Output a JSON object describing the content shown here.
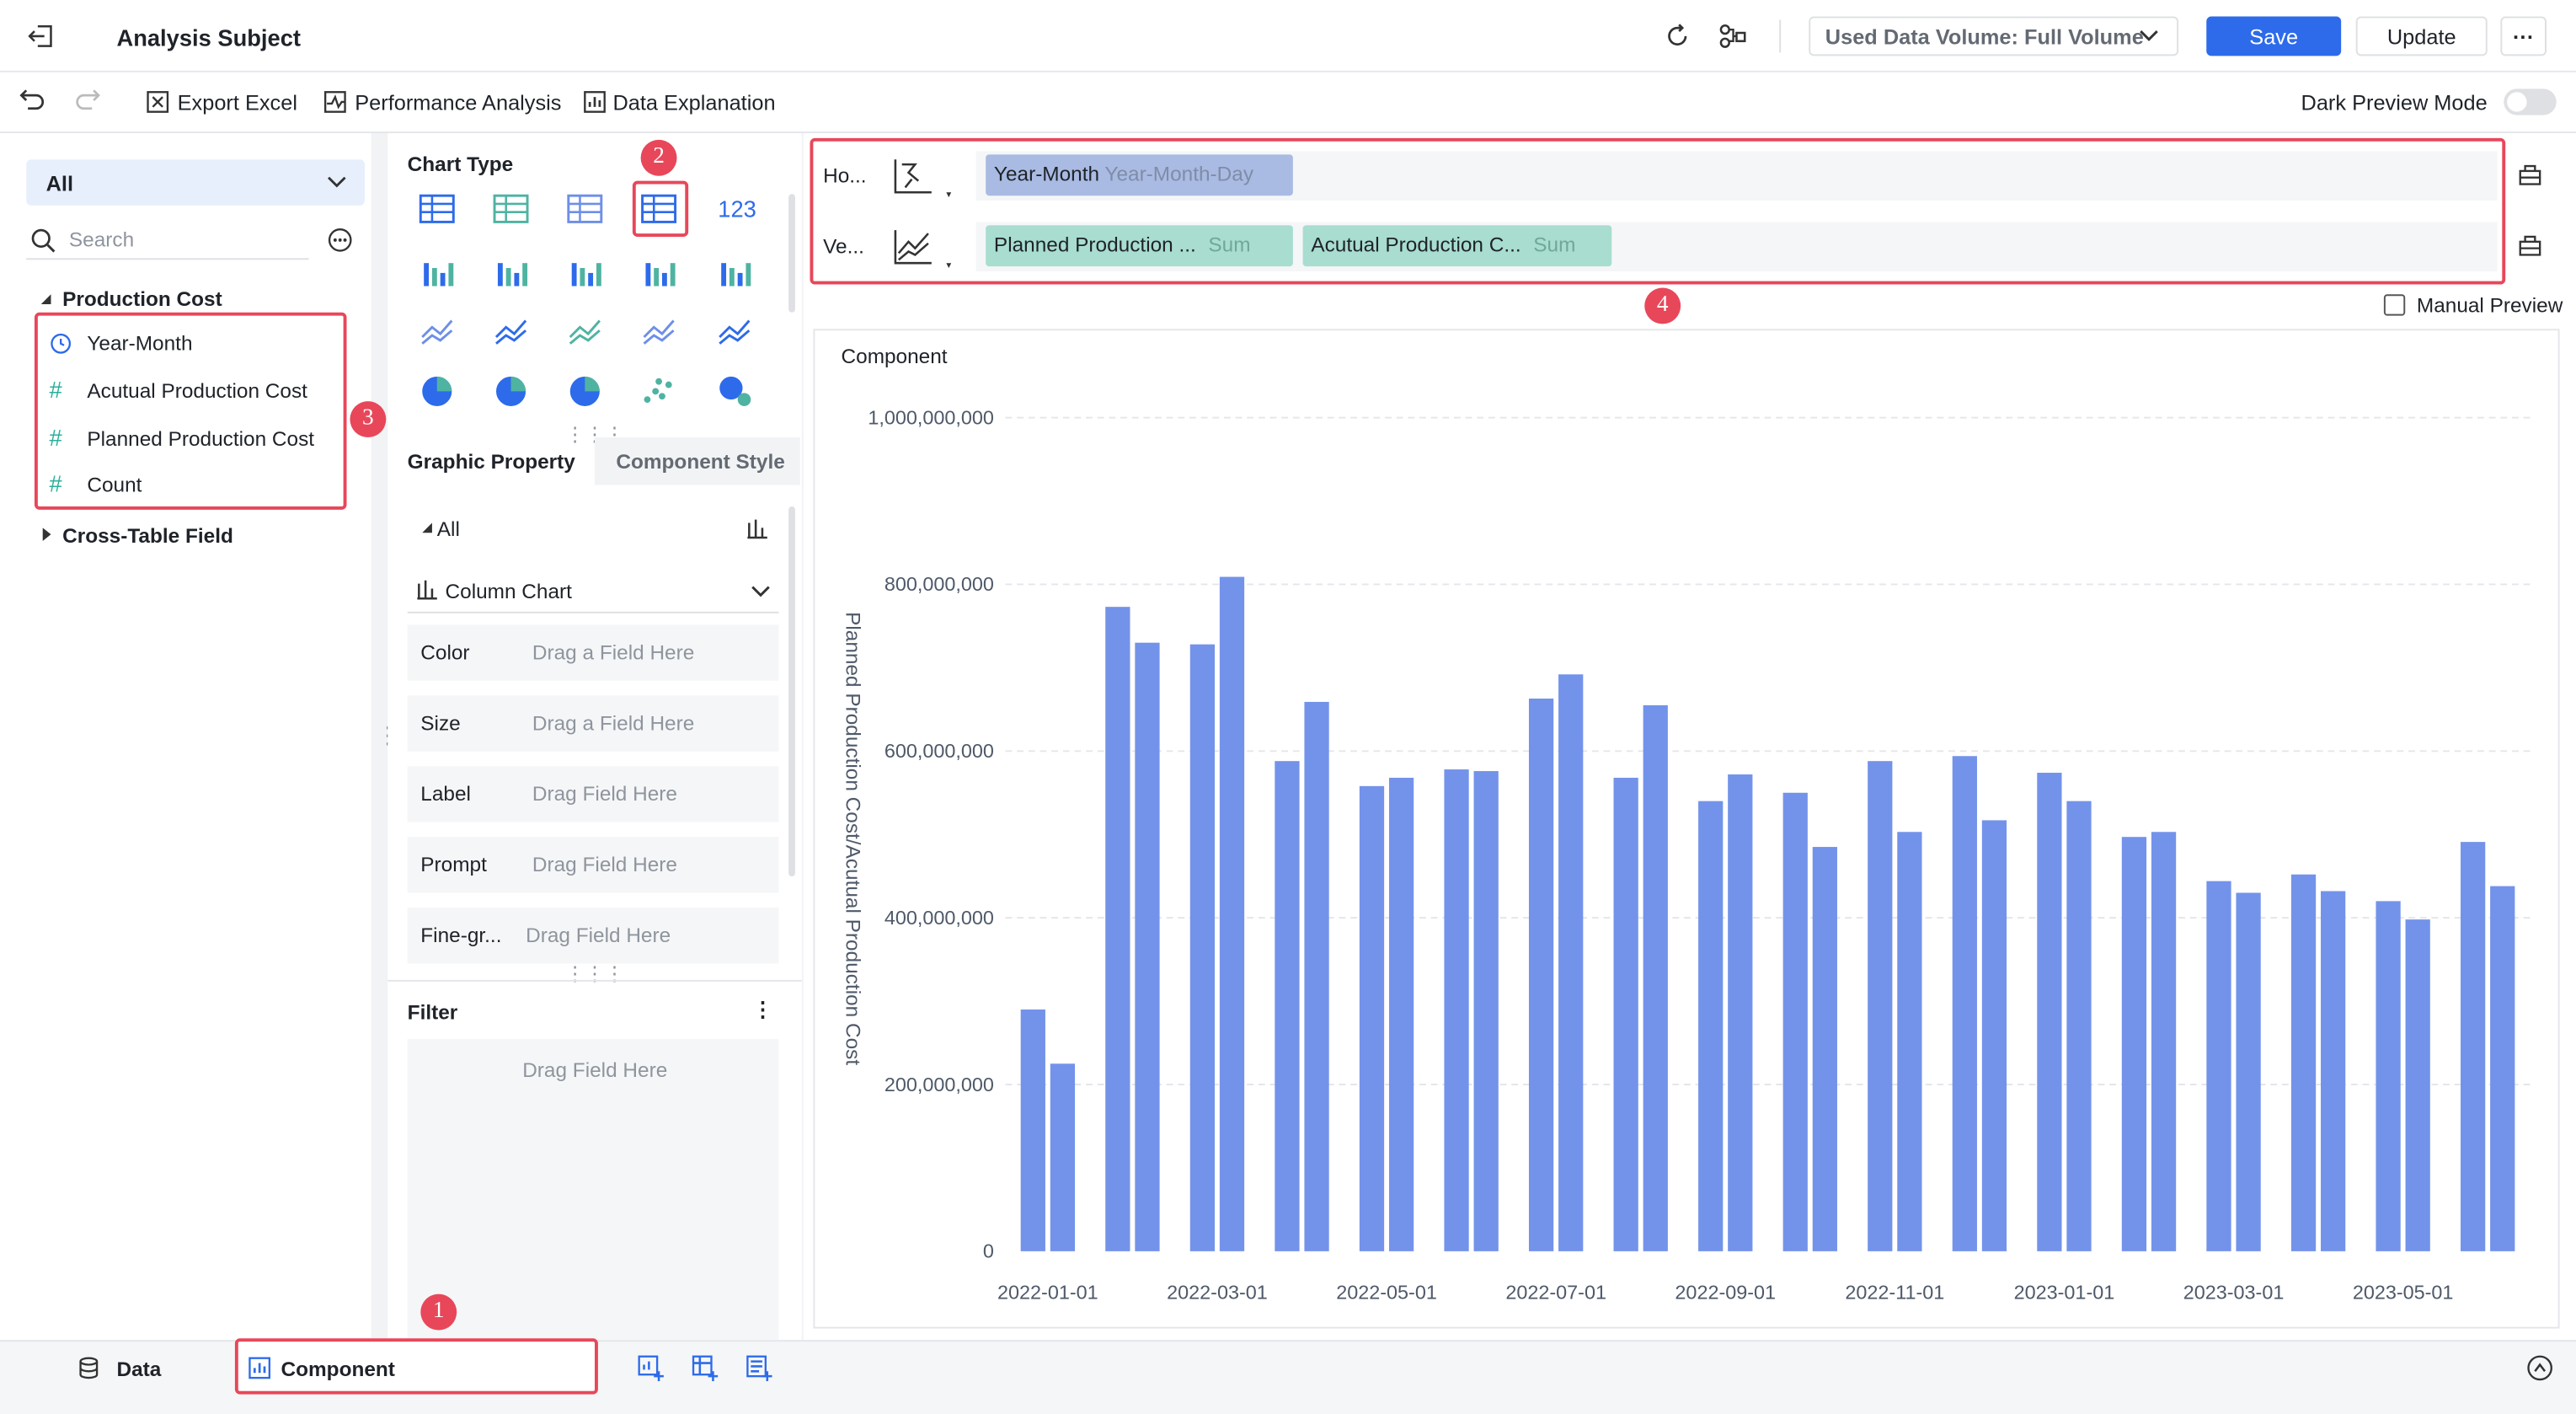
{
  "header": {
    "title": "Analysis Subject",
    "data_volume": "Used Data Volume: Full Volume",
    "save": "Save",
    "update": "Update",
    "more": "···"
  },
  "toolbar": {
    "export_excel": "Export Excel",
    "performance_analysis": "Performance Analysis",
    "data_explanation": "Data Explanation",
    "dark_preview_mode": "Dark Preview Mode"
  },
  "fields_panel": {
    "scope": "All",
    "search_placeholder": "Search",
    "group": "Production Cost",
    "fields": [
      "Year-Month",
      "Acutual Production Cost",
      "Planned Production Cost",
      "Count"
    ],
    "group2": "Cross-Table Field"
  },
  "chart_type_panel": {
    "title": "Chart Type",
    "number_card": "123",
    "tabs": [
      "Graphic Property",
      "Component Style"
    ],
    "scope": "All",
    "chart_kind": "Column Chart",
    "properties": [
      {
        "label": "Color",
        "placeholder": "Drag a Field Here"
      },
      {
        "label": "Size",
        "placeholder": "Drag a Field Here"
      },
      {
        "label": "Label",
        "placeholder": "Drag Field Here"
      },
      {
        "label": "Prompt",
        "placeholder": "Drag Field Here"
      },
      {
        "label": "Fine-gr...",
        "placeholder": "Drag Field Here"
      }
    ],
    "filter_title": "Filter",
    "filter_placeholder": "Drag Field Here"
  },
  "shelf": {
    "horizontal_label": "Ho...",
    "horizontal_field": "Year-Month",
    "horizontal_granularity": "Year-Month-Day",
    "vertical_label": "Ve...",
    "vertical_fields": [
      {
        "name": "Planned Production ...",
        "agg": "Sum"
      },
      {
        "name": "Acutual Production C...",
        "agg": "Sum"
      }
    ],
    "manual_preview": "Manual Preview"
  },
  "bottom_bar": {
    "data_tab": "Data",
    "component_tab": "Component"
  },
  "annotations": [
    "1",
    "2",
    "3",
    "4"
  ],
  "chart_data": {
    "type": "bar",
    "title": "Component",
    "y_label": "Planned Production Cost/Acutual Production Cost",
    "categories": [
      "2022-01-01",
      null,
      "2022-03-01",
      null,
      "2022-05-01",
      null,
      "2022-07-01",
      null,
      "2022-09-01",
      null,
      "2022-11-01",
      null,
      "2023-01-01",
      null,
      "2023-03-01",
      null,
      "2023-05-01",
      null
    ],
    "series": [
      {
        "color": "#7393ea",
        "values": [
          290000000,
          773000000,
          728000000,
          588000000,
          558000000,
          578000000,
          663000000,
          568000000,
          540000000,
          550000000,
          588000000,
          594000000,
          574000000,
          497000000,
          444000000,
          452000000,
          420000000,
          491000000
        ]
      },
      {
        "color": "#7393ea",
        "values": [
          225000000,
          730000000,
          809000000,
          659000000,
          568000000,
          576000000,
          692000000,
          655000000,
          572000000,
          485000000,
          503000000,
          517000000,
          540000000,
          503000000,
          430000000,
          432000000,
          398000000,
          438000000
        ]
      }
    ],
    "ylim": [
      0,
      1000000000
    ],
    "yticks": [
      0,
      {
        "value": 200000000,
        "label": "200,000,000"
      },
      {
        "value": 400000000,
        "label": "400,000,000"
      },
      {
        "value": 600000000,
        "label": "600,000,000"
      },
      {
        "value": 800000000,
        "label": "800,000,000"
      },
      {
        "value": 1000000000,
        "label": "1,000,000,000"
      }
    ],
    "grid": true
  }
}
